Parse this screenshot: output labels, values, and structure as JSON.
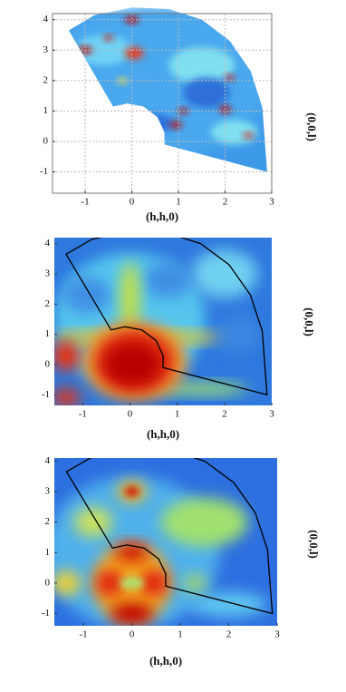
{
  "chart_data": [
    {
      "type": "heatmap",
      "xlabel": "(h,h,0)",
      "ylabel": "(0,0,l)",
      "xlim": [
        -1.7,
        3
      ],
      "ylim": [
        -1.7,
        4.2
      ],
      "xticks": [
        -1,
        0,
        1,
        2,
        3
      ],
      "yticks": [
        -1,
        0,
        1,
        2,
        3,
        4
      ],
      "grid": true
    },
    {
      "type": "heatmap",
      "xlabel": "(h,h,0)",
      "ylabel": "(0,0,l)",
      "xlim": [
        -1.6,
        3
      ],
      "ylim": [
        -1.35,
        4.2
      ],
      "xticks": [
        -1,
        0,
        1,
        2,
        3
      ],
      "yticks": [
        -1,
        0,
        1,
        2,
        3,
        4
      ],
      "grid": false
    },
    {
      "type": "heatmap",
      "xlabel": "(h,h,0)",
      "ylabel": "(0,0,l)",
      "xlim": [
        -1.6,
        3
      ],
      "ylim": [
        -1.4,
        4.1
      ],
      "xticks": [
        -1,
        0,
        1,
        2,
        3
      ],
      "yticks": [
        -1,
        0,
        1,
        2,
        3,
        4
      ],
      "grid": false
    }
  ]
}
